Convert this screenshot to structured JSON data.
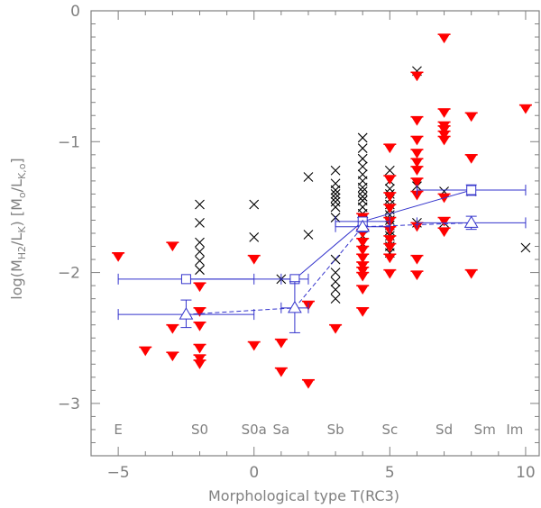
{
  "chart_data": {
    "type": "scatter",
    "xlabel": "Morphological type T(RC3)",
    "ylabel_parts": {
      "pre": "log(M",
      "sub1": "H2",
      "mid": "/L",
      "sub2": "K",
      "post": ") [M",
      "sub3": "o",
      "mid2": "/L",
      "sub4": "K,o",
      "end": "]"
    },
    "xlim": [
      -6,
      10.5
    ],
    "ylim": [
      -3.4,
      0
    ],
    "x_ticks": [
      -5,
      0,
      5,
      10
    ],
    "x_tick_labels": [
      "−5",
      "0",
      "5",
      "10"
    ],
    "y_ticks": [
      0,
      -1,
      -2,
      -3
    ],
    "y_tick_labels": [
      "0",
      "−1",
      "−2",
      "−3"
    ],
    "type_labels": [
      {
        "text": "E",
        "x": -5
      },
      {
        "text": "S0",
        "x": -2
      },
      {
        "text": "S0a",
        "x": 0
      },
      {
        "text": "Sa",
        "x": 1
      },
      {
        "text": "Sb",
        "x": 3
      },
      {
        "text": "Sc",
        "x": 5
      },
      {
        "text": "Sd",
        "x": 7
      },
      {
        "text": "Sm",
        "x": 8.5
      },
      {
        "text": "Im",
        "x": 9.6
      }
    ],
    "type_label_y": -3.2,
    "colors": {
      "axes": "#808080",
      "detections": "#000000",
      "upper_limits": "#ff0000",
      "means": "#3333cc"
    },
    "detections": [
      {
        "x": -2,
        "y": -1.48
      },
      {
        "x": -2,
        "y": -1.62
      },
      {
        "x": -2,
        "y": -1.77
      },
      {
        "x": -2,
        "y": -1.84
      },
      {
        "x": -2,
        "y": -1.91
      },
      {
        "x": -2,
        "y": -1.98
      },
      {
        "x": 0,
        "y": -1.48
      },
      {
        "x": 0,
        "y": -1.73
      },
      {
        "x": 1,
        "y": -2.05
      },
      {
        "x": 2,
        "y": -1.27
      },
      {
        "x": 2,
        "y": -1.71
      },
      {
        "x": 3,
        "y": -1.22
      },
      {
        "x": 3,
        "y": -1.32
      },
      {
        "x": 3,
        "y": -1.37
      },
      {
        "x": 3,
        "y": -1.4
      },
      {
        "x": 3,
        "y": -1.43
      },
      {
        "x": 3,
        "y": -1.46
      },
      {
        "x": 3,
        "y": -1.5
      },
      {
        "x": 3,
        "y": -1.58
      },
      {
        "x": 3,
        "y": -1.9
      },
      {
        "x": 3,
        "y": -2.0
      },
      {
        "x": 3,
        "y": -2.07
      },
      {
        "x": 3,
        "y": -2.13
      },
      {
        "x": 3,
        "y": -2.2
      },
      {
        "x": 4,
        "y": -0.97
      },
      {
        "x": 4,
        "y": -1.05
      },
      {
        "x": 4,
        "y": -1.13
      },
      {
        "x": 4,
        "y": -1.19
      },
      {
        "x": 4,
        "y": -1.25
      },
      {
        "x": 4,
        "y": -1.3
      },
      {
        "x": 4,
        "y": -1.35
      },
      {
        "x": 4,
        "y": -1.38
      },
      {
        "x": 4,
        "y": -1.42
      },
      {
        "x": 4,
        "y": -1.45
      },
      {
        "x": 4,
        "y": -1.5
      },
      {
        "x": 4,
        "y": -1.55
      },
      {
        "x": 4,
        "y": -1.6
      },
      {
        "x": 4,
        "y": -1.66
      },
      {
        "x": 4,
        "y": -1.72
      },
      {
        "x": 4,
        "y": -1.78
      },
      {
        "x": 5,
        "y": -1.22
      },
      {
        "x": 5,
        "y": -1.3
      },
      {
        "x": 5,
        "y": -1.36
      },
      {
        "x": 5,
        "y": -1.4
      },
      {
        "x": 5,
        "y": -1.44
      },
      {
        "x": 5,
        "y": -1.48
      },
      {
        "x": 5,
        "y": -1.52
      },
      {
        "x": 5,
        "y": -1.56
      },
      {
        "x": 5,
        "y": -1.6
      },
      {
        "x": 5,
        "y": -1.64
      },
      {
        "x": 5,
        "y": -1.68
      },
      {
        "x": 5,
        "y": -1.72
      },
      {
        "x": 5,
        "y": -1.76
      },
      {
        "x": 5,
        "y": -1.8
      },
      {
        "x": 5,
        "y": -1.85
      },
      {
        "x": 6,
        "y": -0.46
      },
      {
        "x": 6,
        "y": -1.34
      },
      {
        "x": 6,
        "y": -1.62
      },
      {
        "x": 7,
        "y": -1.38
      },
      {
        "x": 7,
        "y": -1.62
      },
      {
        "x": 8,
        "y": -1.38
      },
      {
        "x": 10,
        "y": -1.81
      }
    ],
    "upper_limits": [
      {
        "x": -5,
        "y": -1.85
      },
      {
        "x": -4,
        "y": -2.57
      },
      {
        "x": -3,
        "y": -1.77
      },
      {
        "x": -3,
        "y": -2.4
      },
      {
        "x": -3,
        "y": -2.61
      },
      {
        "x": -2,
        "y": -2.08
      },
      {
        "x": -2,
        "y": -2.27
      },
      {
        "x": -2,
        "y": -2.38
      },
      {
        "x": -2,
        "y": -2.55
      },
      {
        "x": -2,
        "y": -2.63
      },
      {
        "x": -2,
        "y": -2.67
      },
      {
        "x": 0,
        "y": -1.87
      },
      {
        "x": 0,
        "y": -2.53
      },
      {
        "x": 1,
        "y": -2.51
      },
      {
        "x": 1,
        "y": -2.73
      },
      {
        "x": 2,
        "y": -2.22
      },
      {
        "x": 2,
        "y": -2.82
      },
      {
        "x": 3,
        "y": -2.4
      },
      {
        "x": 4,
        "y": -1.55
      },
      {
        "x": 4,
        "y": -1.67
      },
      {
        "x": 4,
        "y": -1.74
      },
      {
        "x": 4,
        "y": -1.8
      },
      {
        "x": 4,
        "y": -1.86
      },
      {
        "x": 4,
        "y": -1.92
      },
      {
        "x": 4,
        "y": -1.96
      },
      {
        "x": 4,
        "y": -2.0
      },
      {
        "x": 4,
        "y": -2.1
      },
      {
        "x": 4,
        "y": -2.27
      },
      {
        "x": 5,
        "y": -1.02
      },
      {
        "x": 5,
        "y": -1.26
      },
      {
        "x": 5,
        "y": -1.39
      },
      {
        "x": 5,
        "y": -1.48
      },
      {
        "x": 5,
        "y": -1.58
      },
      {
        "x": 5,
        "y": -1.65
      },
      {
        "x": 5,
        "y": -1.72
      },
      {
        "x": 5,
        "y": -1.78
      },
      {
        "x": 5,
        "y": -1.86
      },
      {
        "x": 5,
        "y": -1.98
      },
      {
        "x": 6,
        "y": -0.47
      },
      {
        "x": 6,
        "y": -0.81
      },
      {
        "x": 6,
        "y": -0.96
      },
      {
        "x": 6,
        "y": -1.06
      },
      {
        "x": 6,
        "y": -1.13
      },
      {
        "x": 6,
        "y": -1.19
      },
      {
        "x": 6,
        "y": -1.28
      },
      {
        "x": 6,
        "y": -1.38
      },
      {
        "x": 6,
        "y": -1.62
      },
      {
        "x": 6,
        "y": -1.87
      },
      {
        "x": 6,
        "y": -1.99
      },
      {
        "x": 7,
        "y": -0.18
      },
      {
        "x": 7,
        "y": -0.75
      },
      {
        "x": 7,
        "y": -0.85
      },
      {
        "x": 7,
        "y": -0.88
      },
      {
        "x": 7,
        "y": -0.92
      },
      {
        "x": 7,
        "y": -0.96
      },
      {
        "x": 7,
        "y": -1.4
      },
      {
        "x": 7,
        "y": -1.58
      },
      {
        "x": 7,
        "y": -1.66
      },
      {
        "x": 8,
        "y": -0.78
      },
      {
        "x": 8,
        "y": -1.1
      },
      {
        "x": 8,
        "y": -1.98
      },
      {
        "x": 10,
        "y": -0.72
      }
    ],
    "series": [
      {
        "name": "mean_detections",
        "marker": "square",
        "line": "solid",
        "points": [
          {
            "x": -2.5,
            "y": -2.05,
            "xmin": -5,
            "xmax": 0,
            "ylow": -2.05,
            "yhigh": -2.05
          },
          {
            "x": 1.5,
            "y": -2.05,
            "xmin": 1,
            "xmax": 2,
            "ylow": -2.05,
            "yhigh": -2.05
          },
          {
            "x": 4,
            "y": -1.61,
            "xmin": 3,
            "xmax": 5,
            "ylow": -1.58,
            "yhigh": -1.64
          },
          {
            "x": 8,
            "y": -1.37,
            "xmin": 6,
            "xmax": 10,
            "ylow": -1.33,
            "yhigh": -1.41
          }
        ]
      },
      {
        "name": "mean_all",
        "marker": "triangle",
        "line": "dashed",
        "points": [
          {
            "x": -2.5,
            "y": -2.32,
            "xmin": -5,
            "xmax": 0,
            "ylow": -2.21,
            "yhigh": -2.42
          },
          {
            "x": 1.5,
            "y": -2.27,
            "xmin": 1,
            "xmax": 2,
            "ylow": -2.07,
            "yhigh": -2.46
          },
          {
            "x": 4,
            "y": -1.65,
            "xmin": 3,
            "xmax": 5,
            "ylow": -1.61,
            "yhigh": -1.69
          },
          {
            "x": 8,
            "y": -1.62,
            "xmin": 6,
            "xmax": 10,
            "ylow": -1.57,
            "yhigh": -1.67
          }
        ]
      }
    ]
  }
}
